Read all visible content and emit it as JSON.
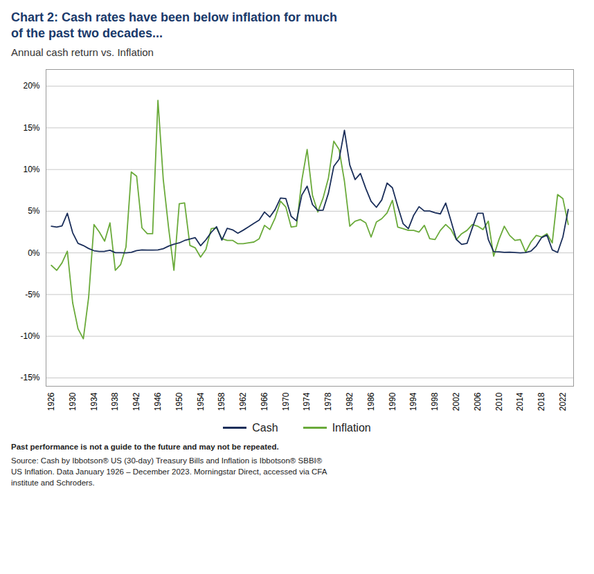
{
  "chart_data": {
    "type": "line",
    "title": "Chart 2: Cash rates have been below inflation for much\nof the past two decades...",
    "subtitle": "Annual cash return vs. Inflation",
    "x": [
      1926,
      1927,
      1928,
      1929,
      1930,
      1931,
      1932,
      1933,
      1934,
      1935,
      1936,
      1937,
      1938,
      1939,
      1940,
      1941,
      1942,
      1943,
      1944,
      1945,
      1946,
      1947,
      1948,
      1949,
      1950,
      1951,
      1952,
      1953,
      1954,
      1955,
      1956,
      1957,
      1958,
      1959,
      1960,
      1961,
      1962,
      1963,
      1964,
      1965,
      1966,
      1967,
      1968,
      1969,
      1970,
      1971,
      1972,
      1973,
      1974,
      1975,
      1976,
      1977,
      1978,
      1979,
      1980,
      1981,
      1982,
      1983,
      1984,
      1985,
      1986,
      1987,
      1988,
      1989,
      1990,
      1991,
      1992,
      1993,
      1994,
      1995,
      1996,
      1997,
      1998,
      1999,
      2000,
      2001,
      2002,
      2003,
      2004,
      2005,
      2006,
      2007,
      2008,
      2009,
      2010,
      2011,
      2012,
      2013,
      2014,
      2015,
      2016,
      2017,
      2018,
      2019,
      2020,
      2021,
      2022,
      2023
    ],
    "series": [
      {
        "name": "Cash",
        "color": "#1a2e5a",
        "values": [
          0.032,
          0.031,
          0.0324,
          0.0475,
          0.0241,
          0.0115,
          0.0088,
          0.0052,
          0.0026,
          0.0017,
          0.0018,
          0.0031,
          0.0002,
          0.0002,
          0.0001,
          0.0006,
          0.0027,
          0.0035,
          0.0033,
          0.0033,
          0.0035,
          0.005,
          0.0081,
          0.0104,
          0.012,
          0.0149,
          0.0166,
          0.0182,
          0.0086,
          0.0157,
          0.0246,
          0.0314,
          0.0154,
          0.0295,
          0.0277,
          0.0236,
          0.0272,
          0.0312,
          0.0354,
          0.0393,
          0.049,
          0.043,
          0.0521,
          0.0658,
          0.0652,
          0.0439,
          0.0384,
          0.0693,
          0.08,
          0.058,
          0.0508,
          0.0513,
          0.0718,
          0.1038,
          0.1124,
          0.1471,
          0.1054,
          0.088,
          0.0952,
          0.0774,
          0.0619,
          0.0547,
          0.0635,
          0.0837,
          0.0781,
          0.056,
          0.0351,
          0.029,
          0.0452,
          0.0554,
          0.0502,
          0.0503,
          0.0481,
          0.0468,
          0.0598,
          0.0383,
          0.0161,
          0.0102,
          0.0114,
          0.0301,
          0.0476,
          0.0476,
          0.016,
          0.0015,
          0.0013,
          0.0006,
          0.0008,
          0.0004,
          0.0001,
          0.0005,
          0.0021,
          0.0084,
          0.0183,
          0.0214,
          0.0036,
          0.0005,
          0.0192,
          0.0521
        ]
      },
      {
        "name": "Inflation",
        "color": "#6aaa3a",
        "values": [
          -0.015,
          -0.021,
          -0.012,
          0.002,
          -0.06,
          -0.091,
          -0.103,
          -0.053,
          0.034,
          0.025,
          0.014,
          0.036,
          -0.021,
          -0.014,
          0.007,
          0.097,
          0.092,
          0.03,
          0.023,
          0.023,
          0.183,
          0.088,
          0.03,
          -0.021,
          0.059,
          0.06,
          0.009,
          0.006,
          -0.005,
          0.004,
          0.029,
          0.03,
          0.017,
          0.015,
          0.015,
          0.011,
          0.011,
          0.012,
          0.013,
          0.017,
          0.033,
          0.028,
          0.042,
          0.062,
          0.055,
          0.031,
          0.032,
          0.087,
          0.124,
          0.069,
          0.049,
          0.066,
          0.09,
          0.134,
          0.124,
          0.086,
          0.032,
          0.038,
          0.04,
          0.036,
          0.019,
          0.037,
          0.041,
          0.048,
          0.063,
          0.031,
          0.029,
          0.027,
          0.027,
          0.025,
          0.033,
          0.017,
          0.016,
          0.027,
          0.034,
          0.028,
          0.016,
          0.023,
          0.027,
          0.034,
          0.032,
          0.028,
          0.038,
          -0.004,
          0.016,
          0.032,
          0.021,
          0.015,
          0.016,
          0.001,
          0.013,
          0.021,
          0.019,
          0.023,
          0.012,
          0.07,
          0.065,
          0.034
        ]
      }
    ],
    "xlim": [
      1925,
      2024
    ],
    "xticks": [
      1926,
      1930,
      1934,
      1938,
      1942,
      1946,
      1950,
      1954,
      1958,
      1962,
      1966,
      1970,
      1974,
      1978,
      1982,
      1986,
      1990,
      1994,
      1998,
      2002,
      2006,
      2010,
      2014,
      2018,
      2022
    ],
    "ylim": [
      -0.16,
      0.22
    ],
    "yticks": [
      {
        "value": -0.15,
        "label": "-15%"
      },
      {
        "value": -0.1,
        "label": "-10%"
      },
      {
        "value": -0.05,
        "label": "-5%"
      },
      {
        "value": 0.0,
        "label": "0%"
      },
      {
        "value": 0.05,
        "label": "5%"
      },
      {
        "value": 0.1,
        "label": "10%"
      },
      {
        "value": 0.15,
        "label": "15%"
      },
      {
        "value": 0.2,
        "label": "20%"
      }
    ],
    "grid": true,
    "legend": "bottom",
    "annotations": [
      "Past performance is not a guide to the future and may not be repeated.",
      "Source: Cash by Ibbotson® US (30-day) Treasury Bills and Inflation is Ibbotson® SBBI®\nUS Inflation. Data January 1926 – December 2023. Morningstar Direct, accessed via CFA\ninstitute and Schroders."
    ]
  }
}
